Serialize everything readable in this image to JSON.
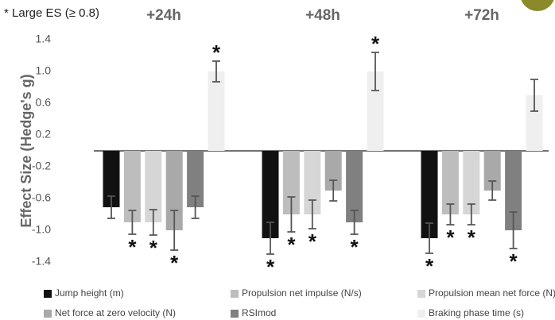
{
  "chart_data": {
    "type": "bar",
    "note": "* Large ES (≥ 0.8)",
    "y_label": "Effect Size (Hedge's g)",
    "categories": [
      "+24h",
      "+48h",
      "+72h"
    ],
    "ylim": [
      -1.4,
      1.4
    ],
    "yticks": [
      1.4,
      {
        "value": 1,
        "label": "1.0"
      },
      0.6,
      0.2,
      -0.2,
      -0.6,
      {
        "value": -1,
        "label": "-1.0"
      },
      -1.4
    ],
    "series": [
      {
        "name": "Jump height (m)",
        "color": "#111111",
        "values": [
          -0.71,
          -1.1,
          -1.1
        ],
        "errors": [
          0.14,
          0.2,
          0.19
        ],
        "markers": [
          null,
          "*",
          "*"
        ]
      },
      {
        "name": "Propulsion net impulse (N/s)",
        "color": "#bdbdbd",
        "values": [
          -0.9,
          -0.8,
          -0.8
        ],
        "errors": [
          0.15,
          0.22,
          0.13
        ],
        "markers": [
          "*",
          "*",
          "*"
        ]
      },
      {
        "name": "Propulsion mean net force (N)",
        "color": "#d6d6d6",
        "values": [
          -0.9,
          -0.8,
          -0.8
        ],
        "errors": [
          0.16,
          0.18,
          0.13
        ],
        "markers": [
          "*",
          "*",
          "*"
        ]
      },
      {
        "name": "Net force at zero velocity (N)",
        "color": "#a9a9a9",
        "values": [
          -1.0,
          -0.5,
          -0.5
        ],
        "errors": [
          0.25,
          0.13,
          0.12
        ],
        "markers": [
          "*",
          null,
          null
        ]
      },
      {
        "name": "RSImod",
        "color": "#808080",
        "values": [
          -0.71,
          -0.9,
          -1.0
        ],
        "errors": [
          0.14,
          0.15,
          0.23
        ],
        "markers": [
          null,
          "*",
          "*"
        ]
      },
      {
        "name": "Braking phase time (s)",
        "color": "#efefef",
        "values": [
          1.0,
          1.0,
          0.7
        ],
        "errors": [
          0.13,
          0.24,
          0.2
        ],
        "markers": [
          "*",
          "*",
          null
        ]
      }
    ]
  }
}
